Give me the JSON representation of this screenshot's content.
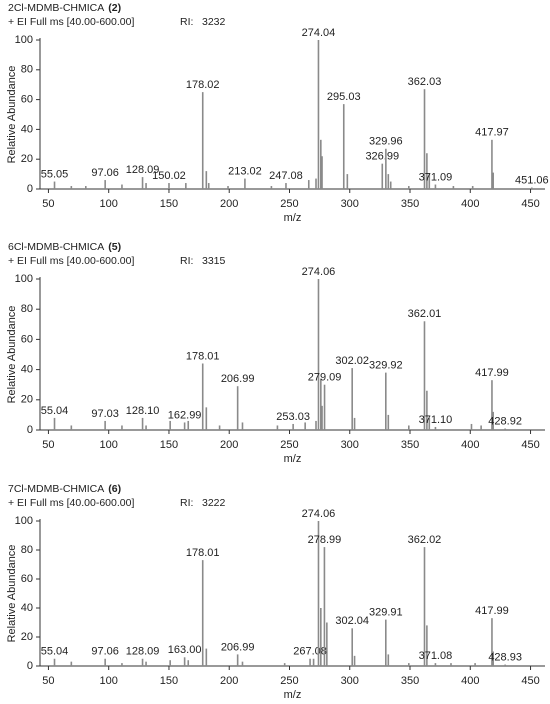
{
  "chart_data": [
    {
      "type": "bar",
      "title": "2Cl-MDMB-CHMICA",
      "title_number": "(2)",
      "subtitle": "+ EI Full ms [40.00-600.00]",
      "ri_label": "RI:",
      "ri": 3232,
      "x_label": "m/z",
      "y_label": "Relative Abundance",
      "color": "#8a8a8a",
      "xlim": [
        43,
        462
      ],
      "xticks": [
        50,
        100,
        150,
        200,
        250,
        300,
        350,
        400,
        450
      ],
      "ylim": [
        0,
        100
      ],
      "yticks": [
        0,
        20,
        40,
        60,
        80,
        100
      ],
      "x": [
        55.05,
        97.06,
        128.09,
        150.02,
        178.02,
        213.02,
        247.08,
        274.04,
        295.03,
        326.99,
        329.96,
        362.03,
        371.09,
        417.97,
        451.06
      ],
      "x_labels": [
        "55.05",
        "97.06",
        "128.09",
        "150.02",
        "178.02",
        "213.02",
        "247.08",
        "274.04",
        "295.03",
        "326.99",
        "329.96",
        "362.03",
        "371.09",
        "417.97",
        "451.06"
      ],
      "values": [
        5,
        6,
        8,
        4,
        65,
        7,
        4,
        100,
        57,
        17,
        27,
        67,
        3,
        33,
        1
      ],
      "minor_x": [
        69,
        81,
        111,
        131,
        164,
        181,
        183,
        199,
        235,
        266,
        272,
        276,
        277,
        298,
        332,
        334,
        349,
        364,
        366,
        386,
        402,
        419
      ],
      "minor_values": [
        2,
        2,
        3,
        4,
        4,
        12,
        4,
        2,
        2,
        6,
        7,
        33,
        22,
        10,
        10,
        5,
        2,
        24,
        10,
        2,
        2,
        11
      ]
    },
    {
      "type": "bar",
      "title": "6Cl-MDMB-CHMICA",
      "title_number": "(5)",
      "subtitle": "+ EI Full ms [40.00-600.00]",
      "ri_label": "RI:",
      "ri": 3315,
      "x_label": "m/z",
      "y_label": "Relative Abundance",
      "color": "#8a8a8a",
      "xlim": [
        43,
        462
      ],
      "xticks": [
        50,
        100,
        150,
        200,
        250,
        300,
        350,
        400,
        450
      ],
      "ylim": [
        0,
        100
      ],
      "yticks": [
        0,
        20,
        40,
        60,
        80,
        100
      ],
      "x": [
        55.04,
        97.03,
        128.1,
        162.99,
        178.01,
        206.99,
        253.03,
        274.06,
        279.09,
        302.02,
        329.92,
        362.01,
        371.1,
        417.99,
        428.92
      ],
      "x_labels": [
        "55.04",
        "97.03",
        "128.10",
        "162.99",
        "178.01",
        "206.99",
        "253.03",
        "274.06",
        "279.09",
        "302.02",
        "329.92",
        "362.01",
        "371.10",
        "417.99",
        "428.92"
      ],
      "values": [
        8,
        6,
        8,
        5,
        44,
        29,
        4,
        100,
        30,
        41,
        38,
        72,
        2,
        33,
        1
      ],
      "minor_x": [
        69,
        111,
        131,
        151,
        166,
        181,
        192,
        211,
        240,
        263,
        272,
        276,
        277,
        304,
        332,
        349,
        364,
        366,
        401,
        409,
        419
      ],
      "minor_values": [
        3,
        3,
        3,
        6,
        6,
        15,
        3,
        5,
        3,
        5,
        6,
        34,
        16,
        8,
        10,
        3,
        26,
        8,
        4,
        3,
        12
      ]
    },
    {
      "type": "bar",
      "title": "7Cl-MDMB-CHMICA",
      "title_number": "(6)",
      "subtitle": "+ EI Full ms [40.00-600.00]",
      "ri_label": "RI:",
      "ri": 3222,
      "x_label": "m/z",
      "y_label": "Relative Abundance",
      "color": "#8a8a8a",
      "xlim": [
        43,
        462
      ],
      "xticks": [
        50,
        100,
        150,
        200,
        250,
        300,
        350,
        400,
        450
      ],
      "ylim": [
        0,
        100
      ],
      "yticks": [
        0,
        20,
        40,
        60,
        80,
        100
      ],
      "x": [
        55.04,
        97.06,
        128.09,
        163.0,
        178.01,
        206.99,
        267.08,
        274.06,
        278.99,
        302.04,
        329.91,
        362.02,
        371.08,
        417.99,
        428.93
      ],
      "x_labels": [
        "55.04",
        "97.06",
        "128.09",
        "163.00",
        "178.01",
        "206.99",
        "267.08",
        "274.06",
        "278.99",
        "302.04",
        "329.91",
        "362.02",
        "371.08",
        "417.99",
        "428.93"
      ],
      "values": [
        5,
        5,
        5,
        6,
        73,
        8,
        5,
        100,
        82,
        26,
        32,
        82,
        2,
        33,
        1
      ],
      "minor_x": [
        69,
        111,
        131,
        151,
        166,
        181,
        211,
        246,
        270,
        276,
        281,
        304,
        332,
        349,
        364,
        384,
        404,
        419
      ],
      "minor_values": [
        3,
        2,
        3,
        4,
        4,
        12,
        3,
        2,
        5,
        40,
        30,
        7,
        8,
        2,
        28,
        2,
        2,
        10
      ]
    }
  ]
}
